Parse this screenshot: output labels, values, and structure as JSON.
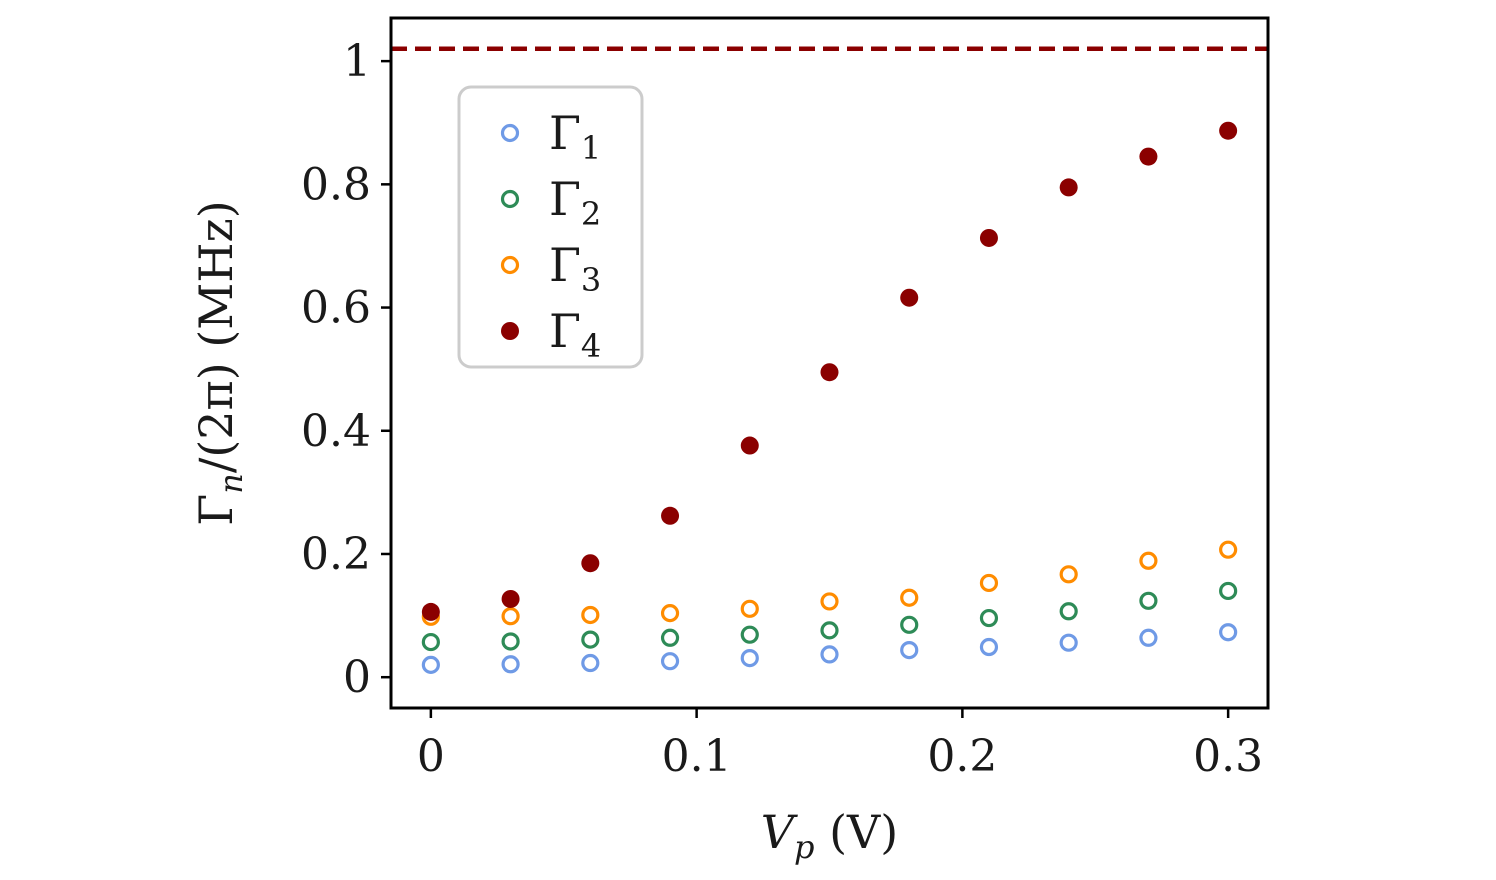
{
  "chart_data": {
    "type": "scatter",
    "xlabel": {
      "main": "V",
      "sub": "p",
      "unit": " (V)"
    },
    "ylabel": {
      "main": "Γ",
      "sub": "n",
      "unit": "/(2π) (MHz)"
    },
    "xlim": [
      -0.015,
      0.315
    ],
    "ylim": [
      -0.05,
      1.07
    ],
    "x_ticks": [
      0,
      0.1,
      0.2,
      0.3
    ],
    "x_tick_labels": [
      "0",
      "0.1",
      "0.2",
      "0.3"
    ],
    "y_ticks": [
      0,
      0.2,
      0.4,
      0.6,
      0.8,
      1.0
    ],
    "y_tick_labels": [
      "0",
      "0.2",
      "0.4",
      "0.6",
      "0.8",
      "1"
    ],
    "grid": false,
    "legend_position": "upper-left",
    "x": [
      0,
      0.03,
      0.06,
      0.09,
      0.12,
      0.15,
      0.18,
      0.21,
      0.24,
      0.27,
      0.3
    ],
    "series": [
      {
        "name": "Γ",
        "sub": "1",
        "color": "#6f9ae6",
        "marker": "open-circle",
        "values": [
          0.02,
          0.021,
          0.023,
          0.026,
          0.031,
          0.037,
          0.044,
          0.049,
          0.056,
          0.064,
          0.073
        ]
      },
      {
        "name": "Γ",
        "sub": "2",
        "color": "#2e8b57",
        "marker": "open-circle",
        "values": [
          0.057,
          0.058,
          0.061,
          0.064,
          0.069,
          0.076,
          0.085,
          0.096,
          0.107,
          0.124,
          0.14
        ]
      },
      {
        "name": "Γ",
        "sub": "3",
        "color": "#ff8c00",
        "marker": "open-circle",
        "values": [
          0.098,
          0.099,
          0.101,
          0.104,
          0.111,
          0.123,
          0.129,
          0.153,
          0.167,
          0.189,
          0.207
        ]
      },
      {
        "name": "Γ",
        "sub": "4",
        "color": "#8b0000",
        "marker": "filled-circle",
        "values": [
          0.106,
          0.127,
          0.185,
          0.262,
          0.376,
          0.495,
          0.616,
          0.713,
          0.795,
          0.845,
          0.887
        ]
      }
    ],
    "reference_line": {
      "y": 1.02,
      "style": "dashed",
      "color": "#8b0000"
    }
  }
}
